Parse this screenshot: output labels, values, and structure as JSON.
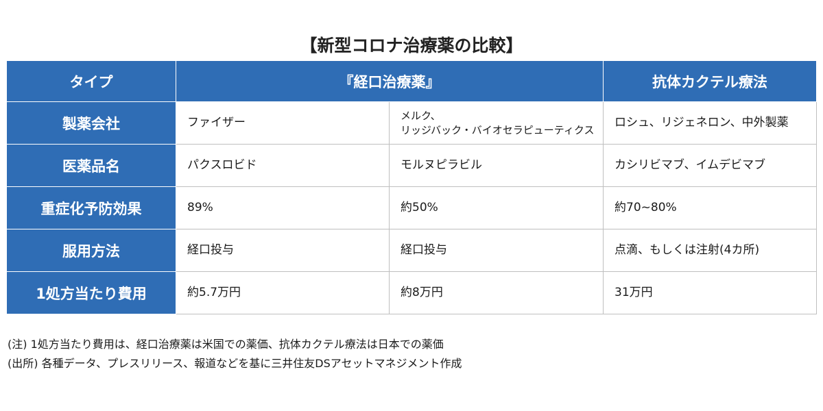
{
  "title": "【新型コロナ治療薬の比較】",
  "header": {
    "type": "タイプ",
    "oral": "『経口治療薬』",
    "antibody": "抗体カクテル療法"
  },
  "rows": [
    {
      "label": "製薬会社",
      "pfizer": "ファイザー",
      "merck_line1": "メルク、",
      "merck_line2": "リッジバック・バイオセラピューティクス",
      "antibody": "ロシュ、リジェネロン、中外製薬"
    },
    {
      "label": "医薬品名",
      "pfizer": "パクスロビド",
      "merck": "モルヌピラビル",
      "antibody": "カシリビマブ、イムデビマブ"
    },
    {
      "label": "重症化予防効果",
      "pfizer": "89%",
      "merck": "約50%",
      "antibody": "約70~80%"
    },
    {
      "label": "服用方法",
      "pfizer": "経口投与",
      "merck": "経口投与",
      "antibody": "点滴、もしくは注射(4カ所)"
    },
    {
      "label": "1処方当たり費用",
      "pfizer": "約5.7万円",
      "merck": "約8万円",
      "antibody": "31万円"
    }
  ],
  "notes": {
    "note": "(注) 1処方当たり費用は、経口治療薬は米国での薬価、抗体カクテル療法は日本での薬価",
    "source": "(出所) 各種データ、プレスリリース、報道などを基に三井住友DSアセットマネジメント作成"
  },
  "colors": {
    "header_blue": "#2f6db5",
    "border_gray": "#bfbfbf"
  }
}
